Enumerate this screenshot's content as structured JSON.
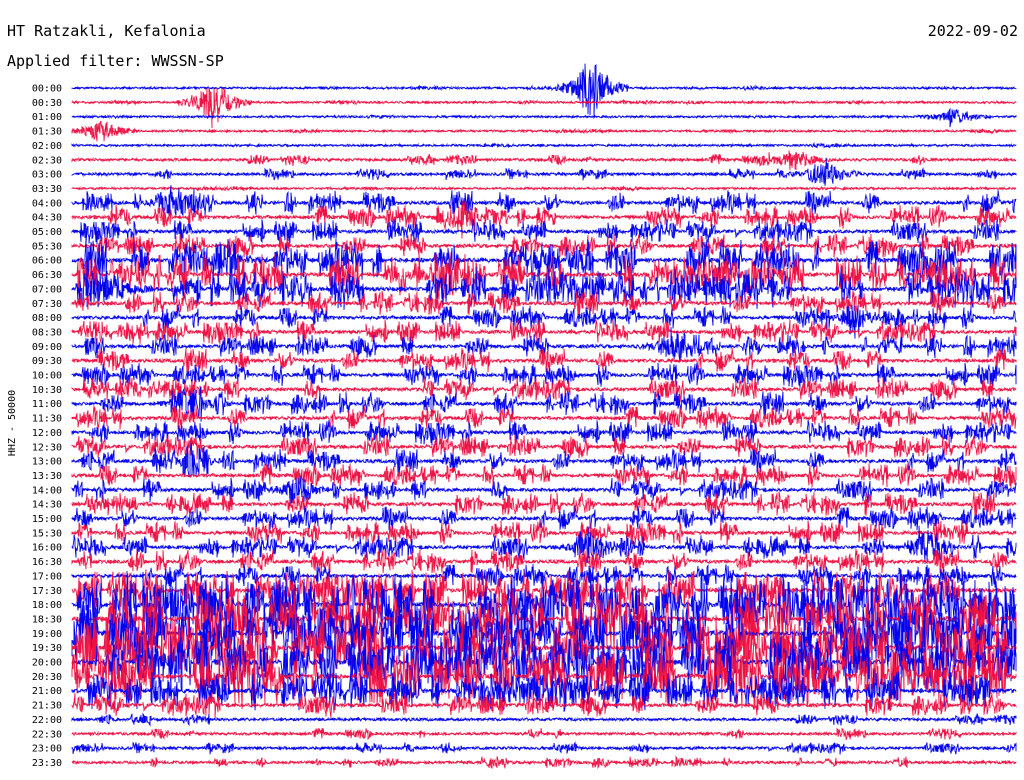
{
  "header": {
    "station": "HT Ratzakli, Kefalonia",
    "date": "2022-09-02",
    "filter": "Applied filter: WWSSN-SP"
  },
  "chart_data": {
    "type": "line",
    "title": "HT Ratzakli, Kefalonia",
    "ylabel": "HHZ - 50000",
    "tick_labels": [
      "00:00",
      "00:30",
      "01:00",
      "01:30",
      "02:00",
      "02:30",
      "03:00",
      "03:30",
      "04:00",
      "04:30",
      "05:00",
      "05:30",
      "06:00",
      "06:30",
      "07:00",
      "07:30",
      "08:00",
      "08:30",
      "09:00",
      "09:30",
      "10:00",
      "10:30",
      "11:00",
      "11:30",
      "12:00",
      "12:30",
      "13:00",
      "13:30",
      "14:00",
      "14:30",
      "15:00",
      "15:30",
      "16:00",
      "16:30",
      "17:00",
      "17:30",
      "18:00",
      "18:30",
      "19:00",
      "19:30",
      "20:00",
      "20:30",
      "21:00",
      "21:30",
      "22:00",
      "22:30",
      "23:00",
      "23:30"
    ],
    "colors": [
      "#0000ee",
      "#ee1144"
    ],
    "trace_colors_description": "alternating blue and red seismic traces per 30-minute line",
    "activity": [
      1,
      1,
      1,
      1,
      1,
      2,
      2,
      1,
      3,
      3,
      3,
      3,
      4,
      4,
      4,
      3,
      3,
      3,
      3,
      3,
      3,
      3,
      3,
      3,
      3,
      3,
      3,
      3,
      3,
      3,
      3,
      3,
      3,
      3,
      3,
      4,
      5,
      5,
      5,
      5,
      5,
      5,
      4,
      3,
      2,
      2,
      2,
      2
    ],
    "events": [
      {
        "row": 0,
        "minute": 16.5,
        "amp": 40
      },
      {
        "row": 1,
        "minute": 4.5,
        "amp": 30
      },
      {
        "row": 2,
        "minute": 28,
        "amp": 12
      },
      {
        "row": 3,
        "minute": 0.9,
        "amp": 14
      },
      {
        "row": 5,
        "minute": 23,
        "amp": 14
      },
      {
        "row": 6,
        "minute": 24,
        "amp": 16
      },
      {
        "row": 8,
        "minute": 3.5,
        "amp": 18
      },
      {
        "row": 9,
        "minute": 12.5,
        "amp": 14
      },
      {
        "row": 12,
        "minute": 5,
        "amp": 16
      },
      {
        "row": 13,
        "minute": 11.5,
        "amp": 16
      },
      {
        "row": 13,
        "minute": 22,
        "amp": 18
      },
      {
        "row": 14,
        "minute": 1.4,
        "amp": 18
      },
      {
        "row": 16,
        "minute": 25,
        "amp": 14
      },
      {
        "row": 18,
        "minute": 19,
        "amp": 14
      },
      {
        "row": 22,
        "minute": 3.9,
        "amp": 12
      },
      {
        "row": 26,
        "minute": 3.8,
        "amp": 12
      },
      {
        "row": 28,
        "minute": 7.2,
        "amp": 12
      },
      {
        "row": 32,
        "minute": 16.7,
        "amp": 20
      },
      {
        "row": 32,
        "minute": 27,
        "amp": 14
      }
    ]
  }
}
